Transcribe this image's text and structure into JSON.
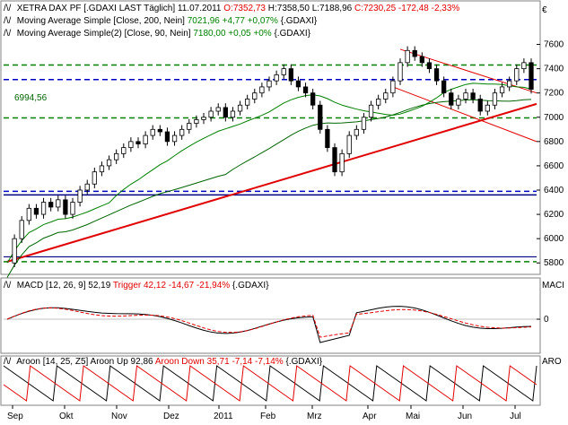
{
  "panels": {
    "price": {
      "header_symbol": "XETRA DAX PF [.GDAXI LAST Täglich] 11.07.2011",
      "ohlc": {
        "open_label": "O:7352,73",
        "high_label": "H:7358,50",
        "low_label": "L:7188,96",
        "close_label": "C:7230,25",
        "change_label": "-172,48 -2,33%"
      },
      "ma200": {
        "name": "Moving Average Simple [Close, 200, Nein]",
        "value_label": "7021,96 +4,77 +0,07%",
        "symbol": "{.GDAXI}"
      },
      "ma90": {
        "name": "Moving Average Simple(2) [Close, 90, Nein]",
        "value_label": "7180,00 +0,05 +0%",
        "symbol": "{.GDAXI}"
      },
      "currency_label": "€",
      "level_label": "6994,56",
      "y_ticks": [
        "7600",
        "7400",
        "7200",
        "7000",
        "6800",
        "6600",
        "6400",
        "6200",
        "6000",
        "5800"
      ]
    },
    "macd": {
      "label_name": "MACD [12, 26, 9]",
      "label_value": "52,19",
      "trigger_label": "Trigger 42,12 -14,67 -21,94%",
      "symbol": "{.GDAXI}",
      "axis_title": "MACI",
      "y_ticks": [
        "0"
      ]
    },
    "aroon": {
      "label_name": "Aroon [14, 25, Z5]",
      "up_label": "Aroon Up 92,86",
      "down_label": "Aroon Down 35,71 -7,14 -7,14%",
      "symbol": "{.GDAXI}",
      "axis_title": "ARO"
    }
  },
  "x_axis": {
    "labels": [
      "Sep",
      "Okt",
      "Nov",
      "Dez",
      "2011",
      "Feb",
      "Mrz",
      "Apr",
      "Mai",
      "Jun",
      "Jul"
    ]
  },
  "colors": {
    "candle_up": "#ffffff",
    "candle_down": "#000000",
    "ma200": "#006400",
    "ma90": "#008000",
    "trendline": "#e00000",
    "channel": "#e00000",
    "support_dashed": "#008000",
    "resistance_dashed": "#0000c0",
    "macd": "#000000",
    "trigger": "#e00000",
    "aroon_up": "#000000",
    "aroon_down": "#e00000"
  },
  "chart_data": [
    {
      "type": "candlestick",
      "title": "XETRA DAX PF [.GDAXI LAST Täglich] 11.07.2011",
      "ylim": [
        5750,
        7700
      ],
      "x_labels": [
        "Sep",
        "Okt",
        "Nov",
        "Dez",
        "2011",
        "Feb",
        "Mrz",
        "Apr",
        "Mai",
        "Jun",
        "Jul"
      ],
      "close_path": [
        [
          0,
          5800
        ],
        [
          1,
          6000
        ],
        [
          2,
          6150
        ],
        [
          3,
          6250
        ],
        [
          4,
          6200
        ],
        [
          5,
          6300
        ],
        [
          6,
          6260
        ],
        [
          7,
          6320
        ],
        [
          8,
          6200
        ],
        [
          9,
          6300
        ],
        [
          10,
          6400
        ],
        [
          11,
          6450
        ],
        [
          12,
          6550
        ],
        [
          13,
          6600
        ],
        [
          14,
          6650
        ],
        [
          15,
          6700
        ],
        [
          16,
          6750
        ],
        [
          17,
          6800
        ],
        [
          18,
          6780
        ],
        [
          19,
          6850
        ],
        [
          20,
          6900
        ],
        [
          21,
          6880
        ],
        [
          22,
          6800
        ],
        [
          23,
          6850
        ],
        [
          24,
          6900
        ],
        [
          25,
          6950
        ],
        [
          26,
          6980
        ],
        [
          27,
          7000
        ],
        [
          28,
          7050
        ],
        [
          29,
          7080
        ],
        [
          30,
          7000
        ],
        [
          31,
          7050
        ],
        [
          32,
          7100
        ],
        [
          33,
          7150
        ],
        [
          34,
          7200
        ],
        [
          35,
          7250
        ],
        [
          36,
          7300
        ],
        [
          37,
          7350
        ],
        [
          38,
          7400
        ],
        [
          39,
          7300
        ],
        [
          40,
          7250
        ],
        [
          41,
          7200
        ],
        [
          42,
          7100
        ],
        [
          43,
          6900
        ],
        [
          44,
          6750
        ],
        [
          45,
          6550
        ],
        [
          46,
          6700
        ],
        [
          47,
          6850
        ],
        [
          48,
          6900
        ],
        [
          49,
          7000
        ],
        [
          50,
          7100
        ],
        [
          51,
          7150
        ],
        [
          52,
          7200
        ],
        [
          53,
          7300
        ],
        [
          54,
          7450
        ],
        [
          55,
          7550
        ],
        [
          56,
          7500
        ],
        [
          57,
          7450
        ],
        [
          58,
          7400
        ],
        [
          59,
          7300
        ],
        [
          60,
          7200
        ],
        [
          61,
          7100
        ],
        [
          62,
          7150
        ],
        [
          63,
          7200
        ],
        [
          64,
          7150
        ],
        [
          65,
          7050
        ],
        [
          66,
          7100
        ],
        [
          67,
          7200
        ],
        [
          68,
          7250
        ],
        [
          69,
          7300
        ],
        [
          70,
          7400
        ],
        [
          71,
          7450
        ],
        [
          72,
          7230
        ]
      ],
      "series": [
        {
          "name": "Moving Average Simple [Close, 200, Nein]",
          "last_value": 7021.96
        },
        {
          "name": "Moving Average Simple(2) [Close, 90, Nein]",
          "last_value": 7180.0
        }
      ],
      "levels": [
        6994.56
      ]
    },
    {
      "type": "line",
      "title": "MACD [12, 26, 9]",
      "series": [
        {
          "name": "MACD",
          "last_value": 52.19
        },
        {
          "name": "Trigger",
          "last_value": 42.12
        }
      ]
    },
    {
      "type": "line",
      "title": "Aroon [14, 25, Z5]",
      "ylim": [
        0,
        100
      ],
      "series": [
        {
          "name": "Aroon Up",
          "last_value": 92.86
        },
        {
          "name": "Aroon Down",
          "last_value": 35.71
        }
      ]
    }
  ]
}
